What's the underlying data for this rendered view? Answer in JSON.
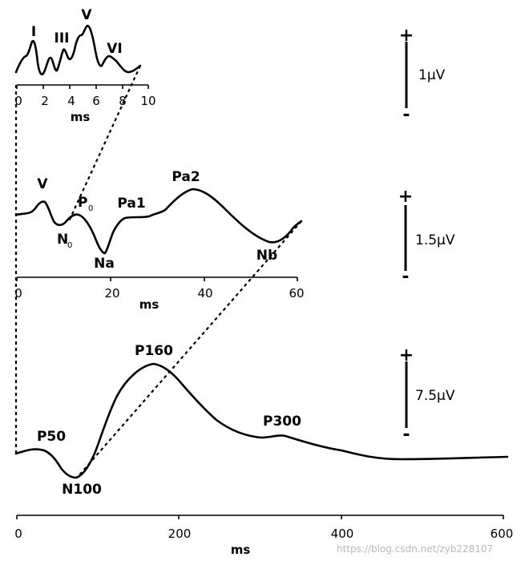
{
  "panels": {
    "abr": {
      "peaks": [
        "I",
        "III",
        "V",
        "VI"
      ],
      "ticks": [
        "0",
        "2",
        "4",
        "6",
        "8",
        "10"
      ],
      "xlabel": "ms",
      "scale": "1µV"
    },
    "mlr": {
      "peaks": [
        "V",
        "P",
        "N",
        "Na",
        "Pa1",
        "Pa2",
        "Nb"
      ],
      "subs": [
        "0",
        "0"
      ],
      "ticks": [
        "0",
        "20",
        "40",
        "60"
      ],
      "xlabel": "ms",
      "scale": "1.5µV"
    },
    "llr": {
      "peaks": [
        "P50",
        "N100",
        "P160",
        "P300"
      ],
      "ticks": [
        "0",
        "200",
        "400",
        "600"
      ],
      "xlabel": "ms",
      "scale": "7.5µV"
    }
  },
  "polarity": {
    "plus": "+",
    "minus": "-"
  },
  "watermark": "https://blog.csdn.net/zyb228107"
}
